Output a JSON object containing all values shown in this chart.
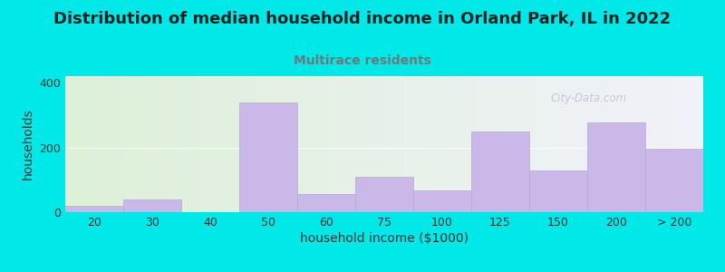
{
  "title": "Distribution of median household income in Orland Park, IL in 2022",
  "subtitle": "Multirace residents",
  "xlabel": "household income ($1000)",
  "ylabel": "households",
  "bar_labels": [
    "20",
    "30",
    "40",
    "50",
    "60",
    "75",
    "100",
    "125",
    "150",
    "200",
    "> 200"
  ],
  "bar_values": [
    20,
    38,
    0,
    340,
    55,
    110,
    68,
    248,
    128,
    278,
    195
  ],
  "bar_color": "#c9b8e8",
  "bar_edgecolor": "#b8a8d8",
  "background_outer": "#00e8e8",
  "plot_bg_left": "#ddf0d8",
  "plot_bg_right": "#f2f2fa",
  "yticks": [
    0,
    200,
    400
  ],
  "ylim": [
    0,
    420
  ],
  "title_fontsize": 13,
  "subtitle_fontsize": 10,
  "subtitle_color": "#707878",
  "watermark": "City-Data.com",
  "xlabel_fontsize": 10,
  "ylabel_fontsize": 10,
  "title_color": "#222222"
}
